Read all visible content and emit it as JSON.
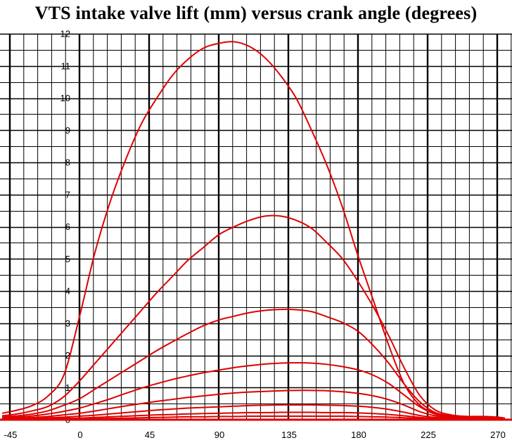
{
  "chart_data": {
    "type": "line",
    "title": "VTS intake valve lift (mm) versus crank angle (degrees)",
    "xlabel": "",
    "ylabel": "",
    "xlim": [
      -50,
      275
    ],
    "ylim": [
      0,
      12
    ],
    "x_ticks": [
      -45,
      0,
      45,
      90,
      135,
      180,
      225,
      270
    ],
    "x_tick_labels": [
      "-45",
      "0",
      "45",
      "90",
      "135",
      "180",
      "225",
      "270"
    ],
    "y_ticks": [
      0,
      1,
      2,
      3,
      4,
      5,
      6,
      7,
      8,
      9,
      10,
      11,
      12
    ],
    "y_tick_labels": [
      "0",
      "1",
      "2",
      "3",
      "4",
      "5",
      "6",
      "7",
      "8",
      "9",
      "10",
      "11",
      "12"
    ],
    "grid": true,
    "x_minor_step": 9,
    "y_minor_step": 0.5,
    "line_color": "#e00000",
    "series": [
      {
        "x": [
          -50,
          -40,
          -30,
          -20,
          -10,
          0,
          10,
          20,
          30,
          40,
          50,
          60,
          70,
          80,
          90,
          100,
          110,
          120,
          130,
          140,
          150,
          160,
          170,
          180,
          190,
          200,
          210,
          220,
          230,
          240,
          250,
          260,
          270,
          275
        ],
        "values": [
          0.2,
          0.3,
          0.45,
          0.75,
          1.4,
          3.2,
          5.2,
          6.8,
          8.1,
          9.2,
          10.0,
          10.7,
          11.2,
          11.55,
          11.7,
          11.75,
          11.6,
          11.25,
          10.7,
          10.0,
          9.0,
          7.9,
          6.6,
          5.1,
          3.7,
          2.3,
          1.1,
          0.45,
          0.2,
          0.12,
          0.1,
          0.1,
          0.08,
          0.05
        ]
      },
      {
        "x": [
          -50,
          -40,
          -30,
          -20,
          -10,
          0,
          10,
          20,
          30,
          40,
          50,
          60,
          70,
          80,
          90,
          100,
          110,
          120,
          130,
          140,
          150,
          160,
          170,
          180,
          190,
          200,
          210,
          220,
          230,
          240,
          250,
          260,
          270,
          275
        ],
        "values": [
          0.12,
          0.18,
          0.28,
          0.42,
          0.72,
          1.2,
          1.75,
          2.3,
          2.85,
          3.4,
          3.95,
          4.45,
          4.95,
          5.35,
          5.75,
          6.0,
          6.2,
          6.33,
          6.33,
          6.2,
          5.95,
          5.5,
          5.0,
          4.3,
          3.5,
          2.6,
          1.6,
          0.75,
          0.3,
          0.15,
          0.1,
          0.08,
          0.06,
          0.04
        ]
      },
      {
        "x": [
          -50,
          -40,
          -30,
          -20,
          -10,
          0,
          10,
          20,
          30,
          40,
          50,
          60,
          70,
          80,
          90,
          100,
          110,
          120,
          130,
          140,
          150,
          160,
          170,
          180,
          190,
          200,
          210,
          220,
          230,
          240,
          250,
          260,
          270,
          275
        ],
        "values": [
          0.08,
          0.12,
          0.18,
          0.28,
          0.45,
          0.65,
          0.95,
          1.25,
          1.55,
          1.85,
          2.15,
          2.42,
          2.68,
          2.92,
          3.1,
          3.22,
          3.33,
          3.4,
          3.43,
          3.42,
          3.36,
          3.2,
          3.02,
          2.75,
          2.3,
          1.75,
          1.1,
          0.55,
          0.22,
          0.12,
          0.08,
          0.06,
          0.05,
          0.03
        ]
      },
      {
        "x": [
          -50,
          -40,
          -30,
          -20,
          -10,
          0,
          10,
          20,
          30,
          40,
          50,
          60,
          70,
          80,
          90,
          100,
          110,
          120,
          130,
          140,
          150,
          160,
          170,
          180,
          190,
          200,
          210,
          220,
          230,
          240,
          250,
          260,
          270,
          275
        ],
        "values": [
          0.06,
          0.08,
          0.12,
          0.18,
          0.26,
          0.36,
          0.5,
          0.65,
          0.82,
          0.98,
          1.12,
          1.25,
          1.36,
          1.46,
          1.54,
          1.62,
          1.68,
          1.73,
          1.76,
          1.77,
          1.76,
          1.72,
          1.65,
          1.55,
          1.38,
          1.12,
          0.76,
          0.4,
          0.17,
          0.09,
          0.06,
          0.05,
          0.04,
          0.02
        ]
      },
      {
        "x": [
          -50,
          -40,
          -30,
          -20,
          -10,
          0,
          10,
          20,
          30,
          40,
          50,
          60,
          70,
          80,
          90,
          100,
          110,
          120,
          130,
          140,
          150,
          160,
          170,
          180,
          190,
          200,
          210,
          220,
          230,
          240,
          250,
          260,
          270,
          275
        ],
        "values": [
          0.04,
          0.05,
          0.07,
          0.1,
          0.15,
          0.2,
          0.27,
          0.35,
          0.43,
          0.5,
          0.57,
          0.63,
          0.69,
          0.74,
          0.79,
          0.83,
          0.86,
          0.88,
          0.9,
          0.91,
          0.91,
          0.9,
          0.87,
          0.82,
          0.74,
          0.62,
          0.45,
          0.25,
          0.12,
          0.07,
          0.05,
          0.04,
          0.03,
          0.02
        ]
      },
      {
        "x": [
          -50,
          -40,
          -30,
          -20,
          -10,
          0,
          10,
          20,
          30,
          40,
          50,
          60,
          70,
          80,
          90,
          100,
          110,
          120,
          130,
          140,
          150,
          160,
          170,
          180,
          190,
          200,
          210,
          220,
          230,
          240,
          250,
          260,
          270,
          275
        ],
        "values": [
          0.03,
          0.03,
          0.04,
          0.06,
          0.08,
          0.11,
          0.14,
          0.18,
          0.22,
          0.26,
          0.3,
          0.33,
          0.36,
          0.38,
          0.4,
          0.42,
          0.44,
          0.45,
          0.46,
          0.46,
          0.46,
          0.45,
          0.44,
          0.42,
          0.38,
          0.32,
          0.23,
          0.13,
          0.07,
          0.04,
          0.03,
          0.03,
          0.02,
          0.02
        ]
      },
      {
        "x": [
          -50,
          -40,
          -30,
          -20,
          -10,
          0,
          10,
          20,
          30,
          40,
          50,
          60,
          70,
          80,
          90,
          100,
          110,
          120,
          130,
          140,
          150,
          160,
          170,
          180,
          190,
          200,
          210,
          220,
          230,
          240,
          250,
          260,
          270,
          275
        ],
        "values": [
          0.02,
          0.02,
          0.02,
          0.03,
          0.04,
          0.05,
          0.07,
          0.09,
          0.11,
          0.13,
          0.15,
          0.16,
          0.18,
          0.19,
          0.2,
          0.21,
          0.22,
          0.22,
          0.23,
          0.23,
          0.23,
          0.22,
          0.22,
          0.21,
          0.19,
          0.16,
          0.12,
          0.07,
          0.04,
          0.03,
          0.02,
          0.02,
          0.01,
          0.01
        ]
      },
      {
        "x": [
          -50,
          -40,
          -30,
          -20,
          -10,
          0,
          10,
          20,
          30,
          40,
          50,
          60,
          70,
          80,
          90,
          100,
          110,
          120,
          130,
          140,
          150,
          160,
          170,
          180,
          190,
          200,
          210,
          220,
          230,
          240,
          250,
          260,
          270,
          275
        ],
        "values": [
          0.01,
          0.01,
          0.01,
          0.02,
          0.02,
          0.03,
          0.03,
          0.04,
          0.05,
          0.06,
          0.07,
          0.08,
          0.09,
          0.09,
          0.1,
          0.1,
          0.11,
          0.11,
          0.11,
          0.11,
          0.11,
          0.11,
          0.11,
          0.1,
          0.09,
          0.08,
          0.06,
          0.04,
          0.02,
          0.02,
          0.01,
          0.01,
          0.01,
          0.01
        ]
      }
    ]
  }
}
